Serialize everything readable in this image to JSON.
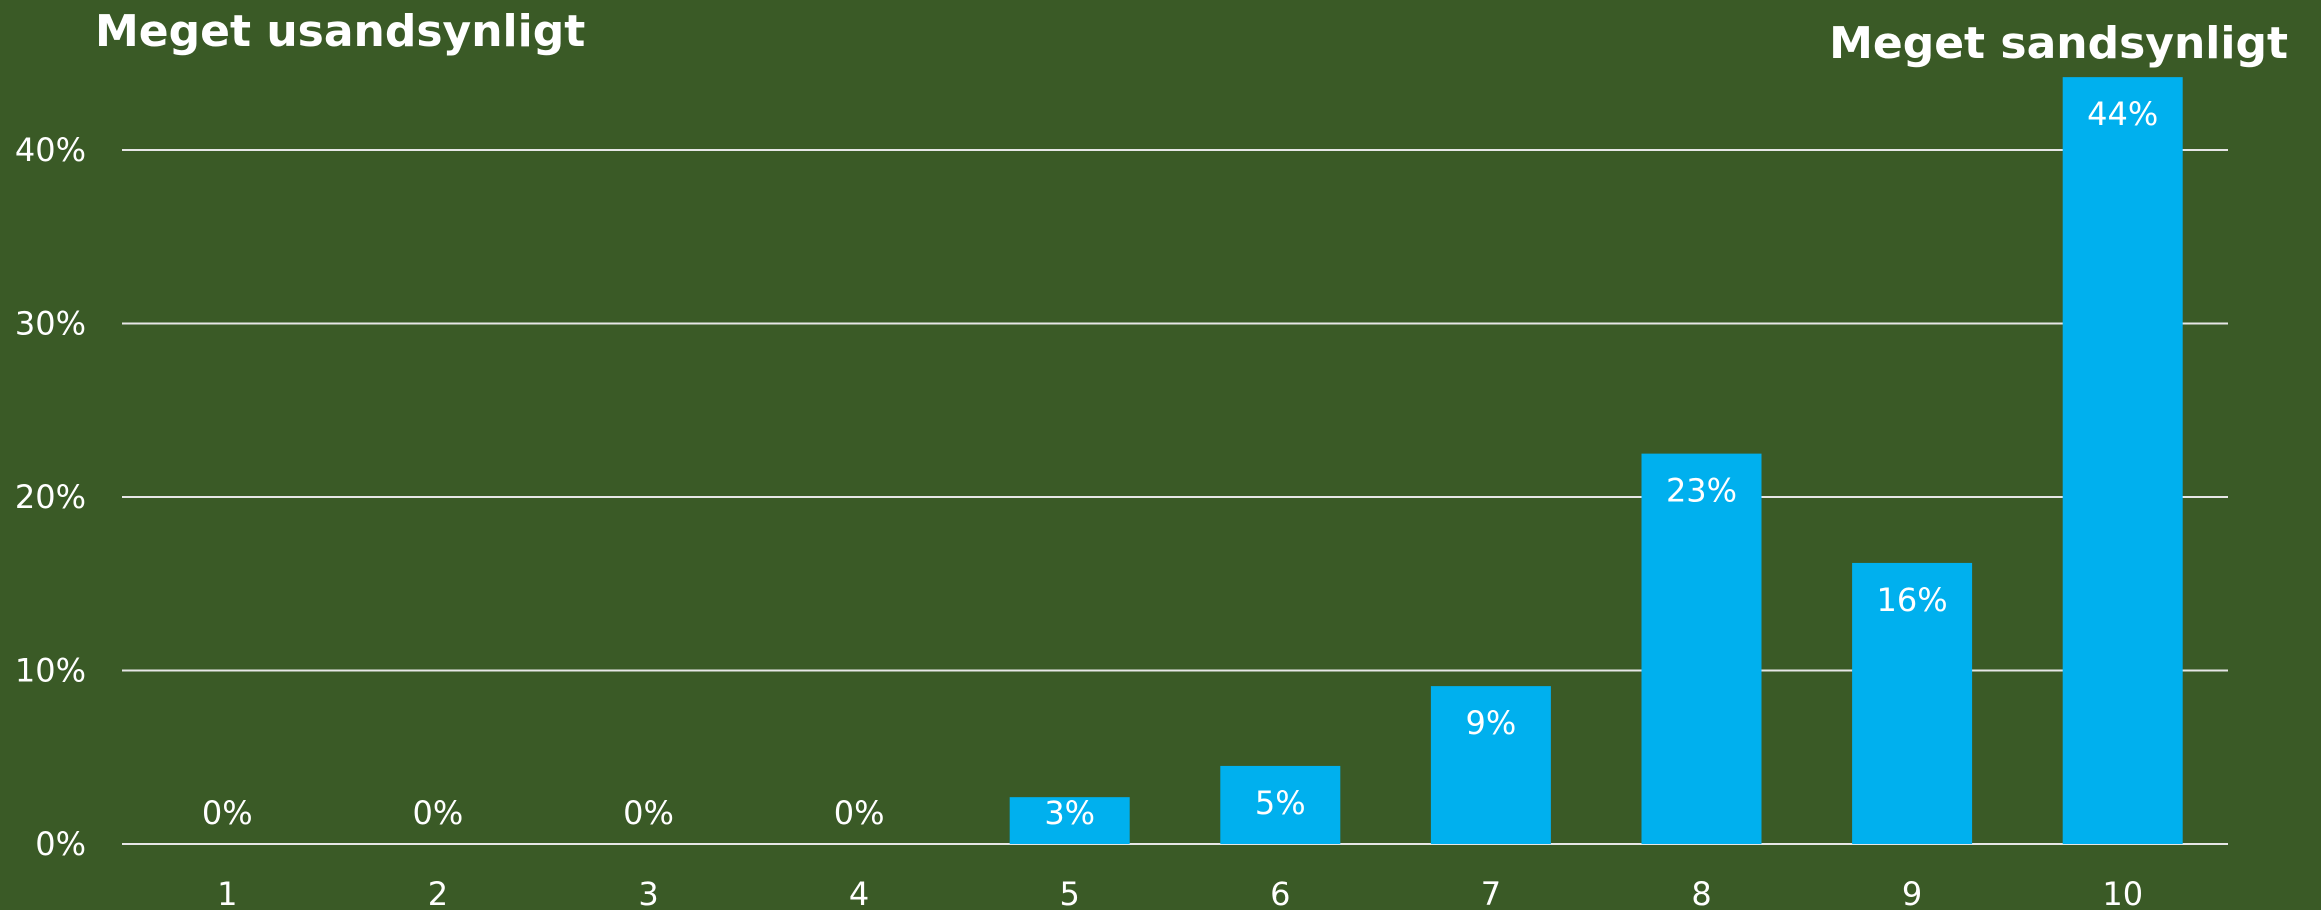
{
  "chart_data": {
    "type": "bar",
    "categories": [
      "1",
      "2",
      "3",
      "4",
      "5",
      "6",
      "7",
      "8",
      "9",
      "10"
    ],
    "values": [
      0,
      0,
      0,
      0,
      2.7,
      4.5,
      9.1,
      22.5,
      16.2,
      44.2
    ],
    "data_labels": [
      "0%",
      "0%",
      "0%",
      "0%",
      "3%",
      "5%",
      "9%",
      "23%",
      "16%",
      "44%"
    ],
    "yticks": [
      "0%",
      "10%",
      "20%",
      "30%",
      "40%"
    ],
    "ytick_values": [
      0,
      10,
      20,
      30,
      40
    ],
    "ylim": [
      0,
      44.2
    ],
    "grid": true,
    "left_label": "Meget usandsynligt",
    "right_label": "Meget sandsynligt",
    "colors": {
      "background": "#3a5a26",
      "bar": "#00b0ee",
      "text": "#ffffff",
      "grid": "#e6e6e6"
    }
  }
}
